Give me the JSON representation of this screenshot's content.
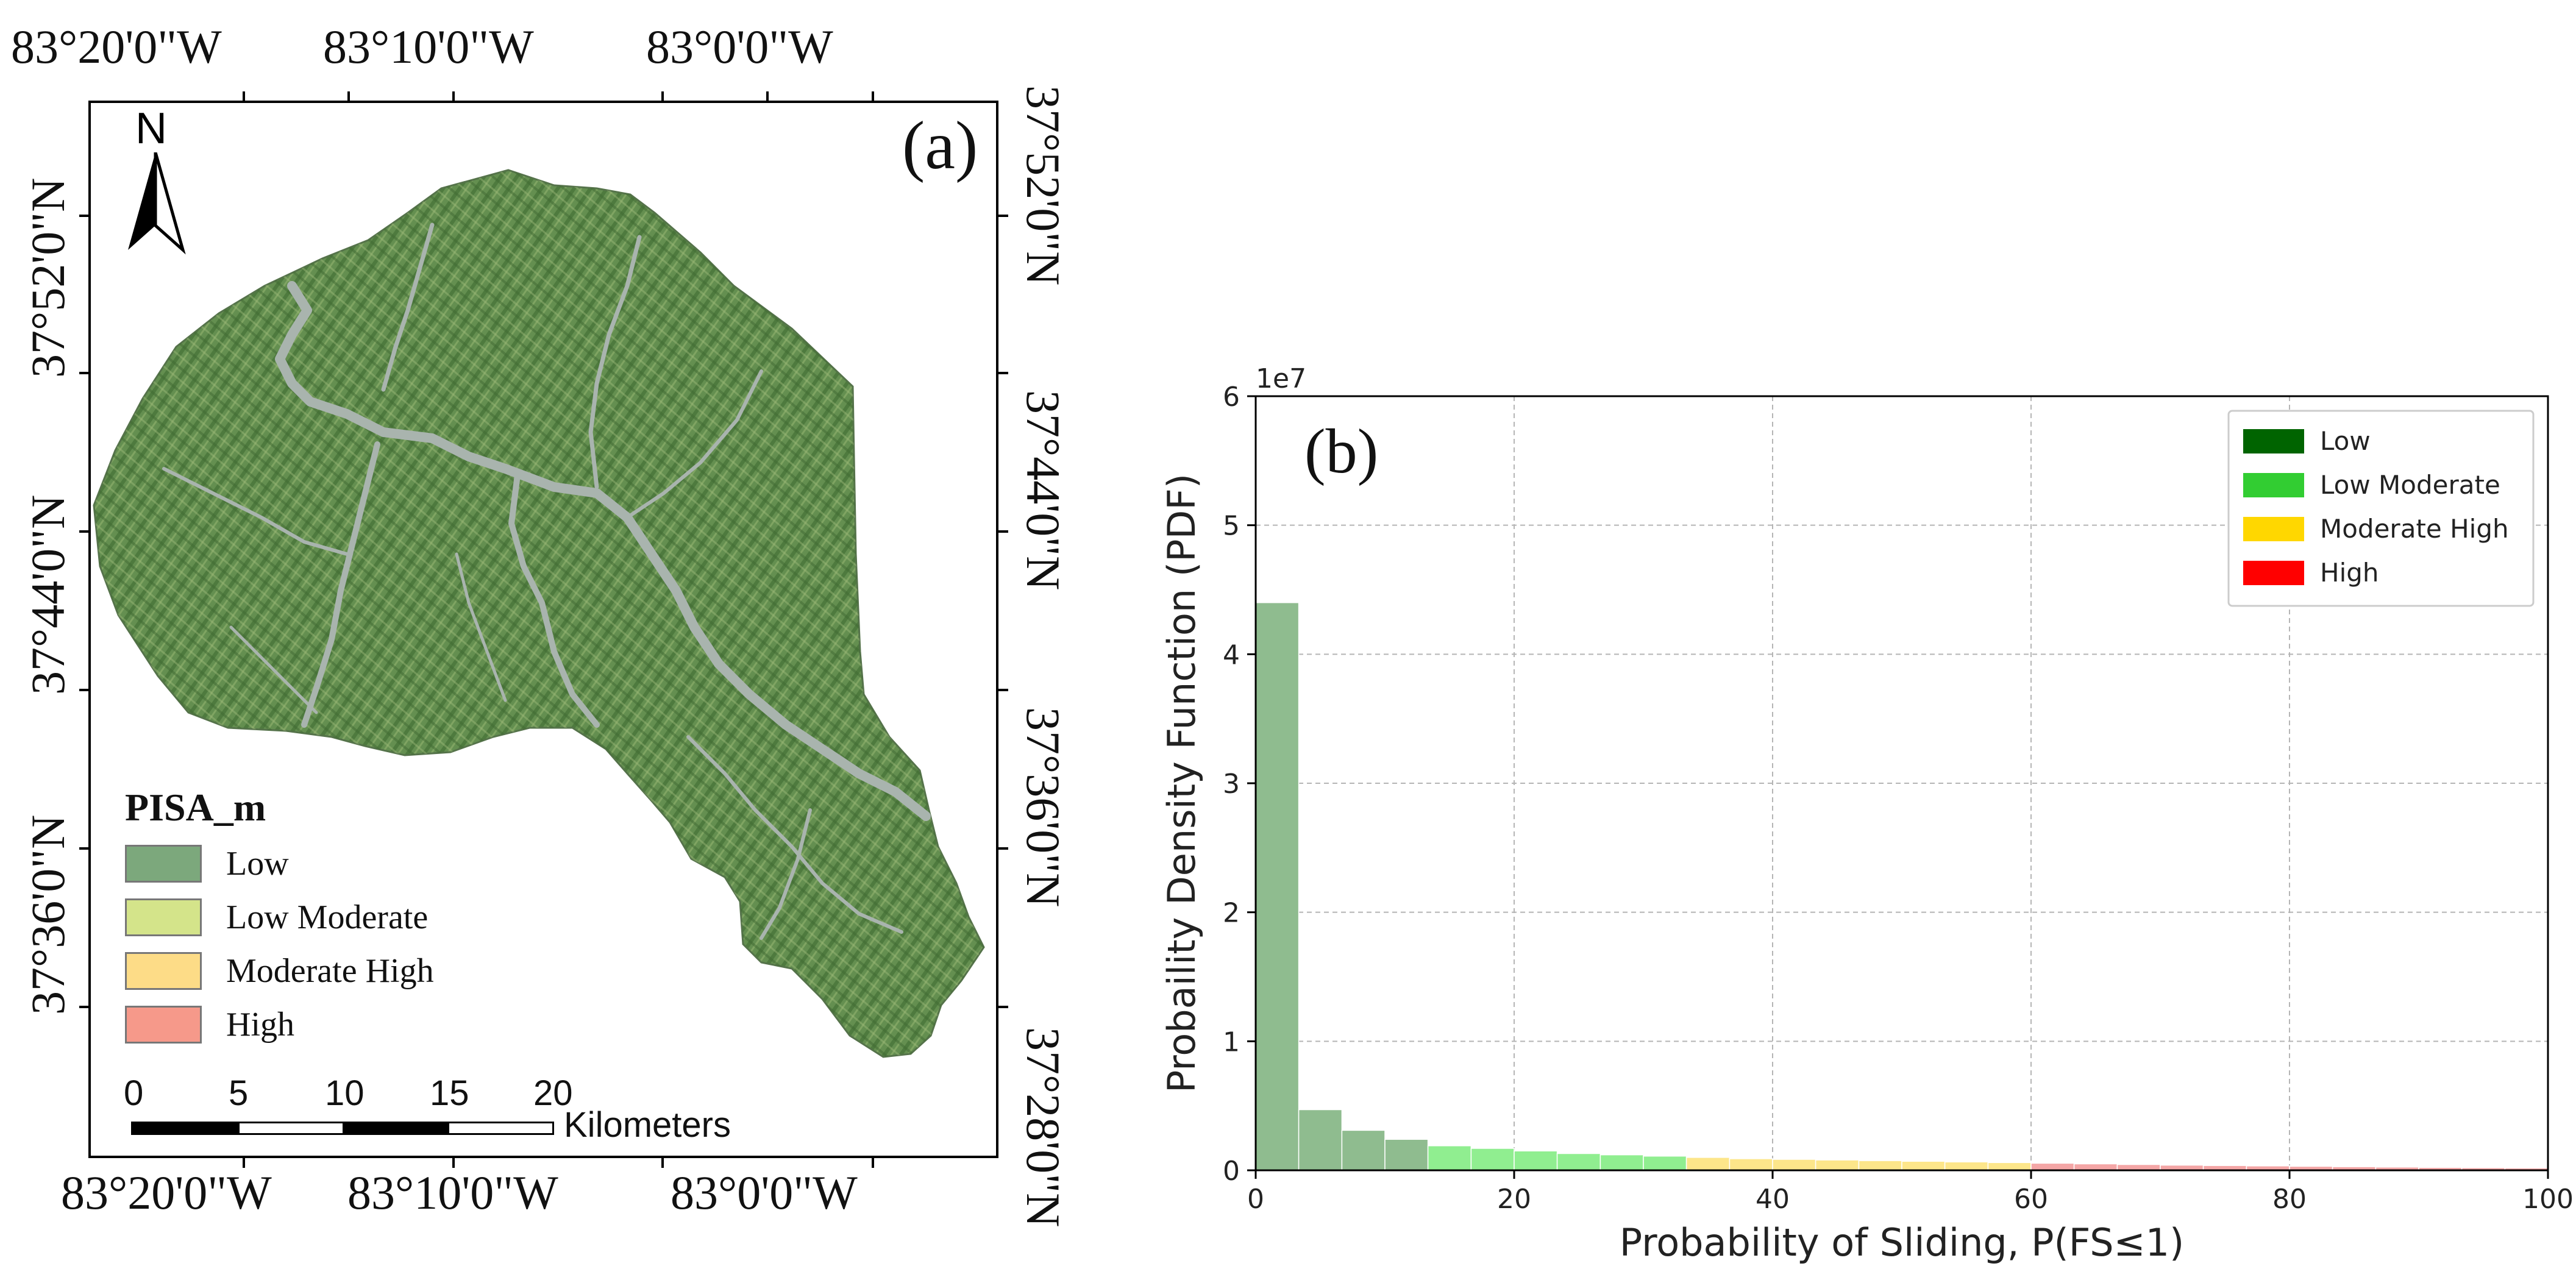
{
  "map": {
    "panel_label": "(a)",
    "north_label": "N",
    "top_longitudes": [
      "83°20'0\"W",
      "83°10'0\"W",
      "83°0'0\"W"
    ],
    "bottom_longitudes": [
      "83°20'0\"W",
      "83°10'0\"W",
      "83°0'0\"W"
    ],
    "left_latitudes": [
      "37°52'0\"N",
      "37°44'0\"N",
      "37°36'0\"N"
    ],
    "right_latitudes": [
      "37°52'0\"N",
      "37°44'0\"N",
      "37°36'0\"N",
      "37°28'0\"N"
    ],
    "legend": {
      "title": "PISA_m",
      "items": [
        {
          "label": "Low",
          "color": "#7ca87c"
        },
        {
          "label": "Low Moderate",
          "color": "#d4e48a"
        },
        {
          "label": "Moderate High",
          "color": "#fddc87"
        },
        {
          "label": "High",
          "color": "#f6998a"
        }
      ]
    },
    "scalebar": {
      "ticks": [
        "0",
        "5",
        "10",
        "15",
        "20"
      ],
      "units": "Kilometers"
    },
    "colors": {
      "terrain": "#5f8f4e",
      "river": "#a9b4ae"
    }
  },
  "chart_data": {
    "type": "bar",
    "panel_label": "(b)",
    "scale_label": "1e7",
    "xlabel": "Probability of Sliding, P(FS≤1)",
    "ylabel": "Probaility Density Function (PDF)",
    "xlim": [
      0,
      100
    ],
    "ylim": [
      0,
      6
    ],
    "xticks": [
      "0",
      "20",
      "40",
      "60",
      "80",
      "100"
    ],
    "yticks": [
      "0",
      "1",
      "2",
      "3",
      "4",
      "5",
      "6"
    ],
    "grid": true,
    "legend_position": "top-right",
    "legend": [
      {
        "label": "Low",
        "color": "#006400"
      },
      {
        "label": "Low Moderate",
        "color": "#32cd32"
      },
      {
        "label": "Moderate High",
        "color": "#ffd700"
      },
      {
        "label": "High",
        "color": "#ff0000"
      }
    ],
    "bar_colors": {
      "Low": "#8fbc8f",
      "Low Moderate": "#90ee90",
      "Moderate High": "#fde68a",
      "High": "#f4a6a6"
    },
    "bars": [
      {
        "x0": 0,
        "x1": 3.33,
        "value": 4.4,
        "class": "Low"
      },
      {
        "x0": 3.33,
        "x1": 6.67,
        "value": 0.47,
        "class": "Low"
      },
      {
        "x0": 6.67,
        "x1": 10.0,
        "value": 0.31,
        "class": "Low"
      },
      {
        "x0": 10.0,
        "x1": 13.33,
        "value": 0.24,
        "class": "Low"
      },
      {
        "x0": 13.33,
        "x1": 16.67,
        "value": 0.19,
        "class": "Low Moderate"
      },
      {
        "x0": 16.67,
        "x1": 20.0,
        "value": 0.17,
        "class": "Low Moderate"
      },
      {
        "x0": 20.0,
        "x1": 23.33,
        "value": 0.15,
        "class": "Low Moderate"
      },
      {
        "x0": 23.33,
        "x1": 26.67,
        "value": 0.13,
        "class": "Low Moderate"
      },
      {
        "x0": 26.67,
        "x1": 30.0,
        "value": 0.12,
        "class": "Low Moderate"
      },
      {
        "x0": 30.0,
        "x1": 33.33,
        "value": 0.11,
        "class": "Low Moderate"
      },
      {
        "x0": 33.33,
        "x1": 36.67,
        "value": 0.1,
        "class": "Moderate High"
      },
      {
        "x0": 36.67,
        "x1": 40.0,
        "value": 0.09,
        "class": "Moderate High"
      },
      {
        "x0": 40.0,
        "x1": 43.33,
        "value": 0.085,
        "class": "Moderate High"
      },
      {
        "x0": 43.33,
        "x1": 46.67,
        "value": 0.08,
        "class": "Moderate High"
      },
      {
        "x0": 46.67,
        "x1": 50.0,
        "value": 0.075,
        "class": "Moderate High"
      },
      {
        "x0": 50.0,
        "x1": 53.33,
        "value": 0.07,
        "class": "Moderate High"
      },
      {
        "x0": 53.33,
        "x1": 56.67,
        "value": 0.065,
        "class": "Moderate High"
      },
      {
        "x0": 56.67,
        "x1": 60.0,
        "value": 0.06,
        "class": "Moderate High"
      },
      {
        "x0": 60.0,
        "x1": 63.33,
        "value": 0.055,
        "class": "High"
      },
      {
        "x0": 63.33,
        "x1": 66.67,
        "value": 0.05,
        "class": "High"
      },
      {
        "x0": 66.67,
        "x1": 70.0,
        "value": 0.045,
        "class": "High"
      },
      {
        "x0": 70.0,
        "x1": 73.33,
        "value": 0.04,
        "class": "High"
      },
      {
        "x0": 73.33,
        "x1": 76.67,
        "value": 0.037,
        "class": "High"
      },
      {
        "x0": 76.67,
        "x1": 80.0,
        "value": 0.034,
        "class": "High"
      },
      {
        "x0": 80.0,
        "x1": 83.33,
        "value": 0.031,
        "class": "High"
      },
      {
        "x0": 83.33,
        "x1": 86.67,
        "value": 0.028,
        "class": "High"
      },
      {
        "x0": 86.67,
        "x1": 90.0,
        "value": 0.025,
        "class": "High"
      },
      {
        "x0": 90.0,
        "x1": 93.33,
        "value": 0.022,
        "class": "High"
      },
      {
        "x0": 93.33,
        "x1": 96.67,
        "value": 0.02,
        "class": "High"
      },
      {
        "x0": 96.67,
        "x1": 100.0,
        "value": 0.018,
        "class": "High"
      }
    ]
  }
}
